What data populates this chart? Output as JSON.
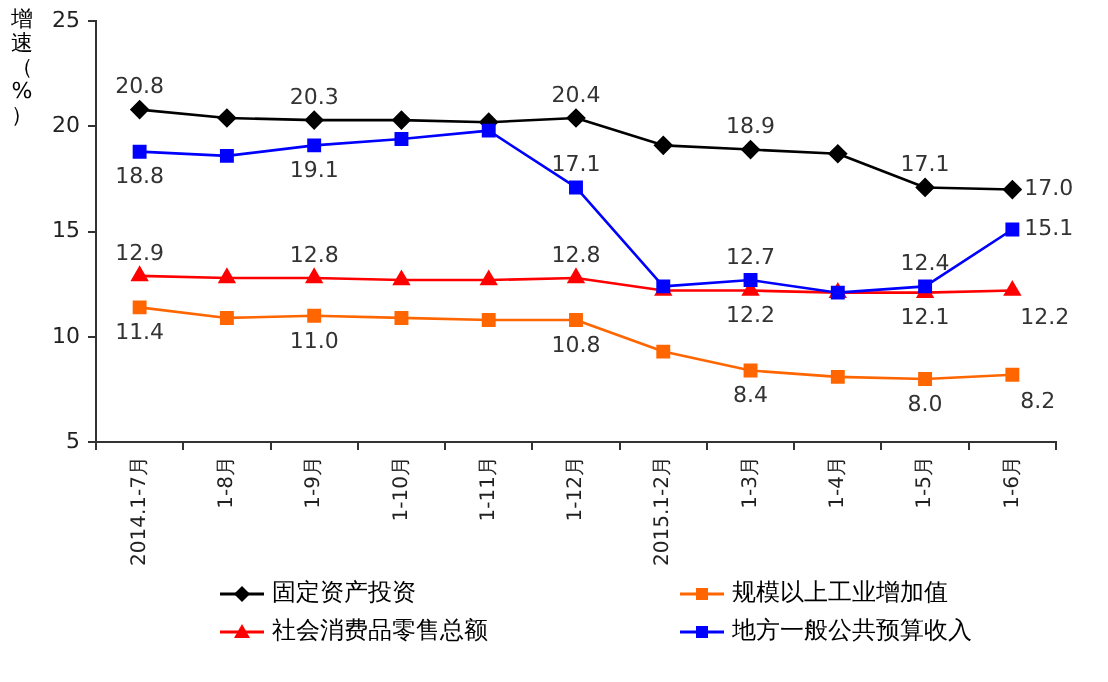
{
  "chart_data": {
    "type": "line",
    "ylabel": "增速（%）",
    "categories": [
      "2014.1-7月",
      "1-8月",
      "1-9月",
      "1-10月",
      "1-11月",
      "1-12月",
      "2015.1-2月",
      "1-3月",
      "1-4月",
      "1-5月",
      "1-6月"
    ],
    "ylim": [
      5,
      25
    ],
    "yticks": [
      5,
      10,
      15,
      20,
      25
    ],
    "grid": false,
    "legend": "bottom",
    "series": [
      {
        "name": "固定资产投资",
        "color": "#000000",
        "marker": "diamond",
        "values": [
          20.8,
          20.4,
          20.3,
          20.3,
          20.2,
          20.4,
          19.1,
          18.9,
          18.7,
          17.1,
          17.0
        ],
        "value_labels": [
          "20.8",
          null,
          "20.3",
          null,
          null,
          "20.4",
          null,
          "18.9",
          null,
          "17.1",
          "17.0"
        ]
      },
      {
        "name": "规模以上工业增加值",
        "color": "#ff6600",
        "marker": "square",
        "values": [
          11.4,
          10.9,
          11.0,
          10.9,
          10.8,
          10.8,
          9.3,
          8.4,
          8.1,
          8.0,
          8.2
        ],
        "value_labels": [
          "11.4",
          null,
          "11.0",
          null,
          null,
          "10.8",
          null,
          "8.4",
          null,
          "8.0",
          "8.2"
        ]
      },
      {
        "name": "社会消费品零售总额",
        "color": "#ff0000",
        "marker": "triangle",
        "values": [
          12.9,
          12.8,
          12.8,
          12.7,
          12.7,
          12.8,
          12.2,
          12.2,
          12.1,
          12.1,
          12.2
        ],
        "value_labels": [
          "12.9",
          null,
          "12.8",
          null,
          null,
          "12.8",
          null,
          "12.2",
          null,
          "12.1",
          "12.2"
        ]
      },
      {
        "name": "地方一般公共预算收入",
        "color": "#0000ff",
        "marker": "square",
        "values": [
          18.8,
          18.6,
          19.1,
          19.4,
          19.8,
          17.1,
          12.4,
          12.7,
          12.1,
          12.4,
          15.1
        ],
        "value_labels": [
          "18.8",
          null,
          "19.1",
          null,
          null,
          "17.1",
          null,
          "12.7",
          null,
          "12.4",
          "15.1"
        ]
      }
    ]
  }
}
